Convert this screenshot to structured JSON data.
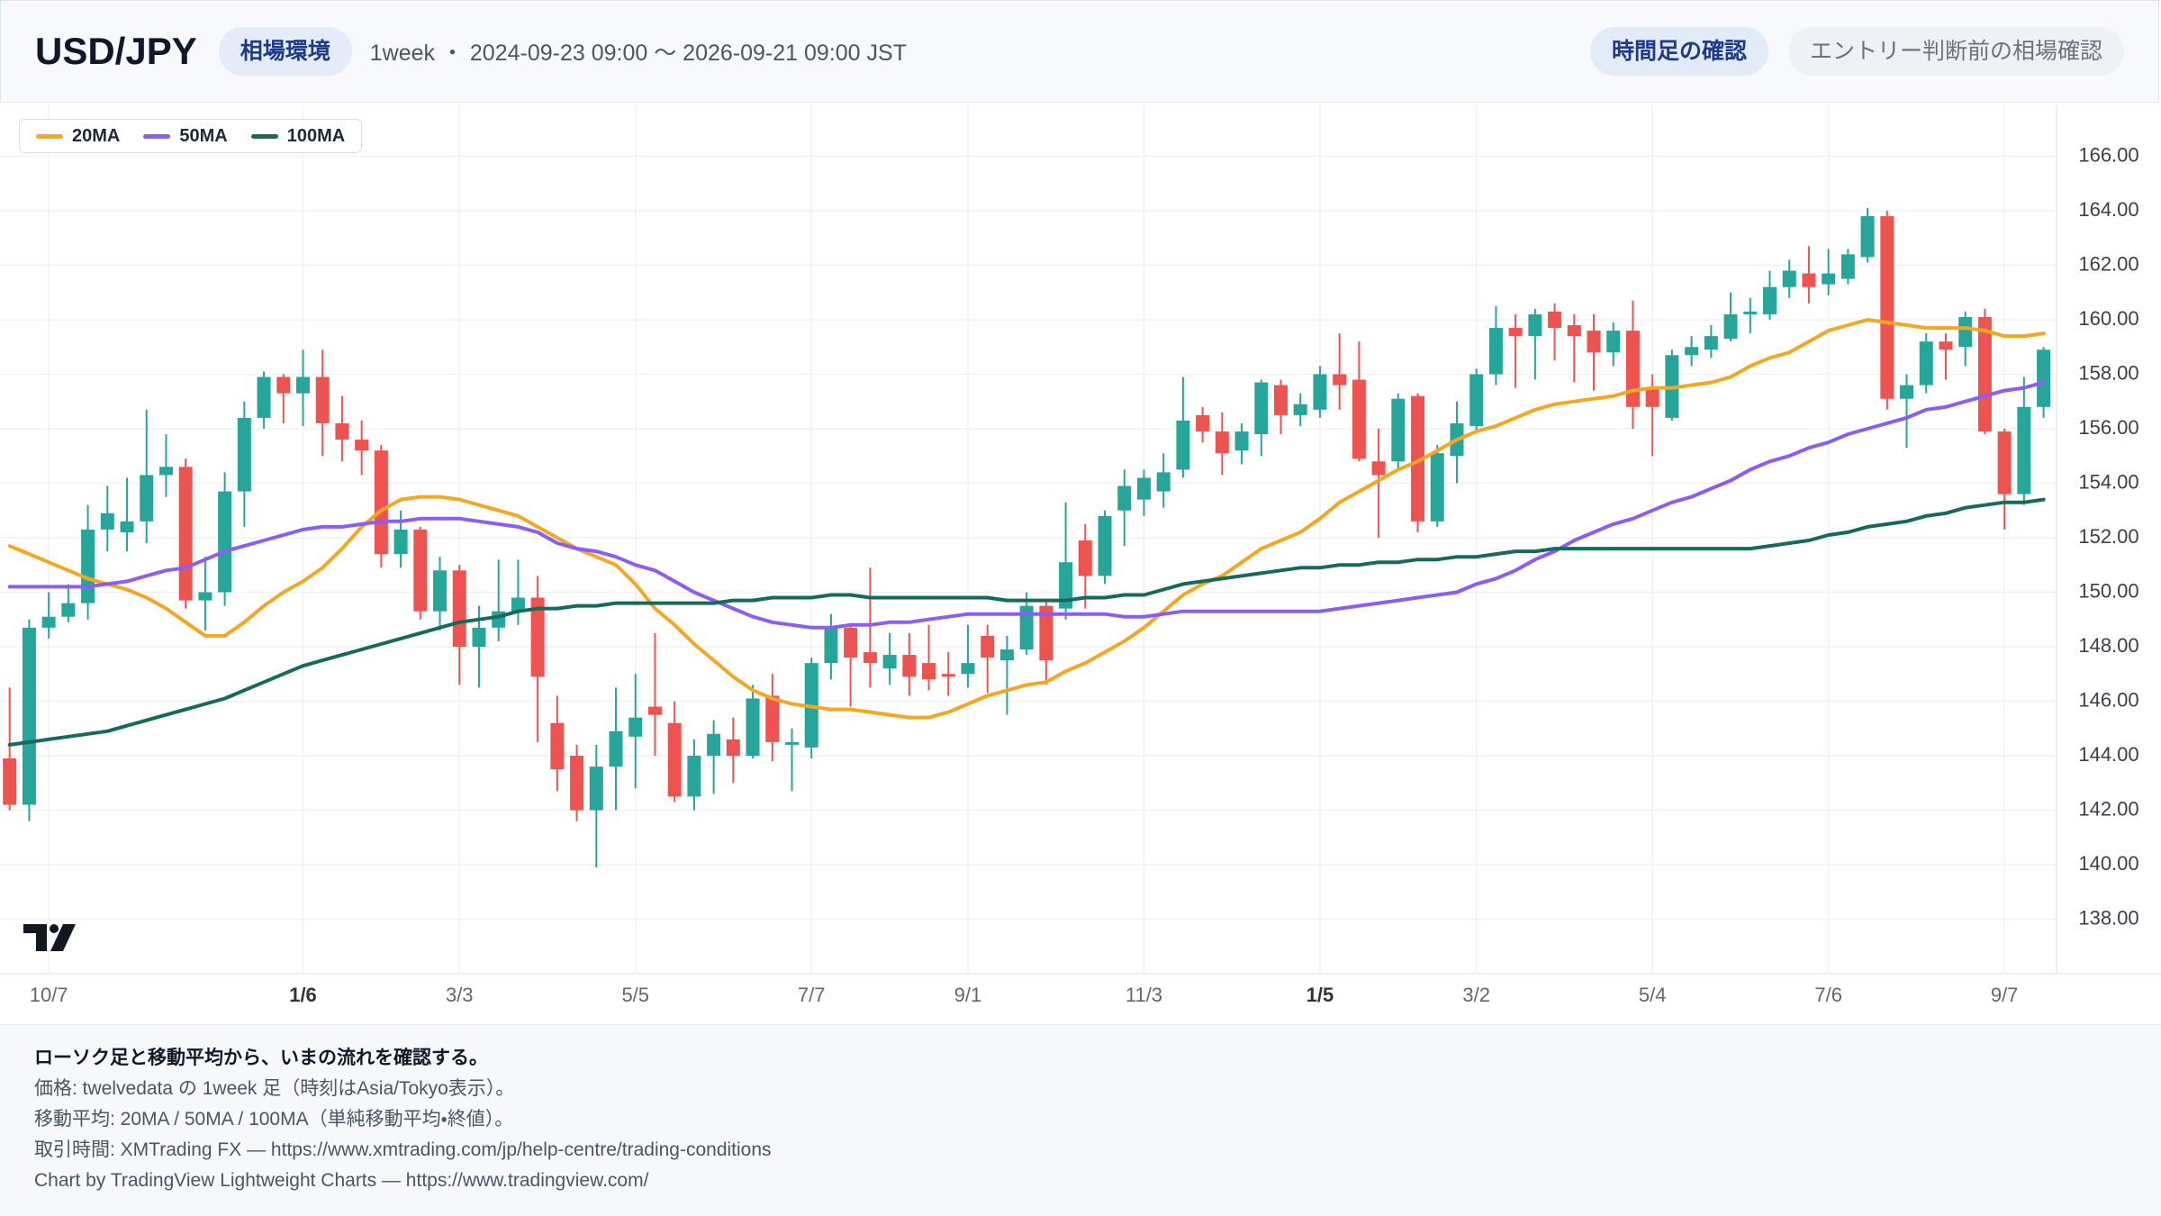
{
  "header": {
    "title": "USD/JPY",
    "badge": "相場環境",
    "subtitle": "1week ・ 2024-09-23 09:00 〜 2026-09-21 09:00 JST",
    "tabs": [
      "時間足の確認",
      "エントリー判断前の相場確認"
    ]
  },
  "chart_data": {
    "type": "candlestick",
    "categories": [
      null,
      null,
      "10/7",
      null,
      null,
      null,
      null,
      null,
      null,
      null,
      null,
      null,
      null,
      null,
      null,
      "1/6",
      null,
      null,
      null,
      null,
      null,
      null,
      null,
      "3/3",
      null,
      null,
      null,
      null,
      null,
      null,
      null,
      null,
      "5/5",
      null,
      null,
      null,
      null,
      null,
      null,
      null,
      null,
      "7/7",
      null,
      null,
      null,
      null,
      null,
      null,
      null,
      "9/1",
      null,
      null,
      null,
      null,
      null,
      null,
      null,
      null,
      "11/3",
      null,
      null,
      null,
      null,
      null,
      null,
      null,
      null,
      "1/5",
      null,
      null,
      null,
      null,
      null,
      null,
      null,
      "3/2",
      null,
      null,
      null,
      null,
      null,
      null,
      null,
      null,
      "5/4",
      null,
      null,
      null,
      null,
      null,
      null,
      null,
      null,
      "7/6",
      null,
      null,
      null,
      null,
      null,
      null,
      null,
      null,
      "9/7",
      null,
      null
    ],
    "open": [
      143.9,
      142.2,
      148.7,
      149.1,
      149.6,
      152.3,
      152.2,
      152.6,
      154.3,
      154.6,
      149.7,
      150.0,
      153.7,
      156.4,
      157.9,
      157.3,
      157.9,
      156.2,
      155.6,
      155.2,
      151.4,
      152.3,
      149.3,
      150.8,
      148.0,
      148.7,
      149.3,
      149.8,
      145.2,
      144.0,
      142.0,
      143.6,
      144.7,
      145.8,
      145.2,
      142.5,
      144.0,
      144.6,
      144.0,
      146.2,
      144.4,
      144.3,
      147.4,
      148.7,
      147.8,
      147.2,
      147.7,
      147.4,
      147.0,
      147.0,
      148.4,
      147.5,
      147.9,
      149.5,
      149.4,
      151.9,
      150.6,
      153.0,
      153.4,
      153.7,
      154.5,
      156.5,
      155.9,
      155.2,
      155.8,
      157.6,
      156.5,
      156.7,
      158.0,
      157.8,
      154.8,
      154.8,
      157.2,
      152.6,
      155.0,
      156.1,
      158.0,
      159.7,
      159.4,
      160.3,
      159.8,
      159.6,
      158.8,
      159.6,
      157.5,
      156.4,
      158.7,
      158.9,
      159.3,
      160.2,
      160.2,
      161.2,
      161.7,
      161.3,
      161.5,
      162.3,
      163.8,
      157.1,
      157.6,
      159.2,
      159.0,
      160.1,
      155.9,
      153.6,
      156.8
    ],
    "high": [
      146.5,
      149.0,
      150.0,
      150.3,
      153.2,
      153.9,
      154.2,
      156.7,
      155.8,
      154.9,
      151.3,
      154.4,
      157.0,
      158.1,
      158.0,
      158.9,
      158.9,
      157.2,
      156.3,
      155.4,
      153.0,
      152.4,
      151.3,
      151.0,
      149.5,
      151.2,
      151.2,
      150.6,
      146.2,
      144.4,
      144.4,
      146.5,
      147.0,
      148.5,
      146.0,
      144.6,
      145.3,
      145.4,
      146.6,
      147.0,
      145.0,
      147.6,
      149.2,
      148.8,
      150.9,
      148.5,
      148.5,
      148.8,
      147.8,
      148.8,
      148.8,
      148.4,
      150.0,
      149.7,
      153.3,
      152.5,
      153.0,
      154.5,
      154.5,
      155.1,
      157.9,
      156.8,
      156.6,
      156.2,
      157.8,
      157.8,
      157.3,
      158.3,
      159.5,
      159.2,
      156.0,
      157.3,
      157.3,
      155.4,
      157.0,
      158.2,
      160.5,
      160.2,
      160.4,
      160.6,
      160.2,
      160.2,
      159.9,
      160.7,
      158.0,
      158.9,
      159.4,
      159.8,
      161.0,
      160.8,
      161.8,
      162.2,
      162.7,
      162.6,
      162.6,
      164.1,
      164.0,
      158.0,
      159.5,
      159.5,
      160.3,
      160.4,
      156.0,
      157.9,
      159.0
    ],
    "low": [
      142.0,
      141.6,
      148.3,
      148.9,
      149.0,
      151.5,
      151.5,
      151.8,
      153.5,
      149.4,
      148.6,
      149.5,
      152.4,
      156.0,
      156.2,
      156.1,
      155.0,
      154.8,
      154.3,
      150.9,
      150.9,
      149.0,
      148.6,
      146.6,
      146.5,
      148.2,
      148.8,
      144.5,
      142.7,
      141.6,
      139.9,
      142.0,
      142.8,
      144.0,
      142.3,
      142.0,
      142.6,
      143.0,
      143.9,
      143.8,
      142.7,
      143.9,
      146.8,
      145.8,
      146.5,
      146.6,
      146.2,
      146.4,
      146.2,
      146.5,
      146.3,
      145.5,
      147.7,
      146.6,
      149.0,
      149.4,
      150.3,
      151.7,
      152.8,
      153.1,
      154.2,
      155.5,
      154.3,
      154.7,
      155.0,
      155.8,
      156.1,
      156.4,
      156.7,
      154.8,
      152.0,
      154.5,
      152.2,
      152.4,
      154.0,
      155.9,
      157.6,
      157.5,
      157.8,
      158.5,
      157.7,
      157.4,
      158.3,
      156.0,
      155.0,
      156.3,
      158.3,
      158.6,
      159.2,
      159.5,
      160.0,
      160.8,
      160.6,
      160.9,
      161.3,
      162.1,
      156.7,
      155.3,
      157.3,
      157.8,
      158.3,
      155.8,
      152.3,
      153.2,
      156.4
    ],
    "close": [
      142.2,
      148.7,
      149.1,
      149.6,
      152.3,
      152.9,
      152.6,
      154.3,
      154.6,
      149.7,
      150.0,
      153.7,
      156.4,
      157.9,
      157.3,
      157.9,
      156.2,
      155.6,
      155.2,
      151.4,
      152.3,
      149.3,
      150.8,
      148.0,
      148.7,
      149.3,
      149.8,
      146.9,
      143.5,
      142.0,
      143.6,
      144.9,
      145.4,
      145.5,
      142.5,
      144.0,
      144.8,
      144.0,
      146.1,
      144.5,
      144.5,
      147.4,
      148.7,
      147.6,
      147.4,
      147.7,
      146.9,
      146.8,
      146.9,
      147.4,
      147.6,
      147.9,
      149.5,
      147.5,
      151.1,
      150.6,
      152.8,
      153.9,
      154.2,
      154.4,
      156.3,
      155.9,
      155.1,
      155.9,
      157.7,
      156.5,
      156.9,
      158.0,
      157.6,
      154.9,
      154.3,
      157.1,
      152.6,
      155.1,
      156.2,
      158.0,
      159.7,
      159.4,
      160.2,
      159.7,
      159.4,
      158.8,
      159.6,
      156.8,
      156.8,
      158.7,
      159.0,
      159.4,
      160.2,
      160.3,
      161.2,
      161.8,
      161.2,
      161.7,
      162.4,
      163.8,
      157.1,
      157.6,
      159.2,
      158.9,
      160.1,
      155.9,
      153.6,
      156.8,
      158.9
    ],
    "up_color": "#26a69a",
    "down_color": "#ef5350",
    "series": [
      {
        "name": "20MA",
        "color": "#f5a623",
        "values": [
          151.7,
          151.4,
          151.1,
          150.8,
          150.5,
          150.3,
          150.1,
          149.8,
          149.4,
          148.9,
          148.4,
          148.4,
          148.9,
          149.5,
          150.0,
          150.4,
          150.9,
          151.6,
          152.4,
          153.0,
          153.4,
          153.5,
          153.5,
          153.4,
          153.2,
          153.0,
          152.8,
          152.4,
          152.0,
          151.6,
          151.3,
          151.0,
          150.3,
          149.4,
          148.8,
          148.1,
          147.5,
          146.9,
          146.4,
          146.1,
          145.9,
          145.8,
          145.7,
          145.7,
          145.6,
          145.5,
          145.4,
          145.4,
          145.6,
          145.9,
          146.2,
          146.4,
          146.6,
          146.7,
          147.1,
          147.4,
          147.8,
          148.2,
          148.7,
          149.3,
          149.9,
          150.3,
          150.6,
          151.1,
          151.6,
          151.9,
          152.2,
          152.7,
          153.3,
          153.7,
          154.1,
          154.5,
          154.8,
          155.2,
          155.6,
          155.9,
          156.1,
          156.4,
          156.7,
          156.9,
          157.0,
          157.1,
          157.2,
          157.4,
          157.5,
          157.5,
          157.6,
          157.7,
          157.9,
          158.3,
          158.6,
          158.8,
          159.2,
          159.6,
          159.8,
          160.0,
          159.9,
          159.8,
          159.7,
          159.7,
          159.7,
          159.6,
          159.4,
          159.4,
          159.5
        ]
      },
      {
        "name": "50MA",
        "color": "#8b5cf6",
        "values": [
          150.2,
          150.2,
          150.2,
          150.2,
          150.2,
          150.3,
          150.4,
          150.6,
          150.8,
          150.9,
          151.2,
          151.5,
          151.7,
          151.9,
          152.1,
          152.3,
          152.4,
          152.4,
          152.5,
          152.6,
          152.6,
          152.7,
          152.7,
          152.7,
          152.6,
          152.5,
          152.4,
          152.2,
          151.8,
          151.6,
          151.5,
          151.3,
          151.0,
          150.8,
          150.4,
          150.0,
          149.7,
          149.4,
          149.1,
          148.9,
          148.8,
          148.7,
          148.7,
          148.8,
          148.8,
          148.9,
          148.9,
          149.0,
          149.1,
          149.2,
          149.2,
          149.2,
          149.2,
          149.2,
          149.2,
          149.2,
          149.2,
          149.1,
          149.1,
          149.2,
          149.3,
          149.3,
          149.3,
          149.3,
          149.3,
          149.3,
          149.3,
          149.3,
          149.4,
          149.5,
          149.6,
          149.7,
          149.8,
          149.9,
          150.0,
          150.3,
          150.5,
          150.8,
          151.2,
          151.5,
          151.9,
          152.2,
          152.5,
          152.7,
          153.0,
          153.3,
          153.5,
          153.8,
          154.1,
          154.5,
          154.8,
          155.0,
          155.3,
          155.5,
          155.8,
          156.0,
          156.2,
          156.4,
          156.7,
          156.8,
          157.0,
          157.2,
          157.4,
          157.5,
          157.7
        ]
      },
      {
        "name": "100MA",
        "color": "#17695a",
        "values": [
          144.4,
          144.5,
          144.6,
          144.7,
          144.8,
          144.9,
          145.1,
          145.3,
          145.5,
          145.7,
          145.9,
          146.1,
          146.4,
          146.7,
          147.0,
          147.3,
          147.5,
          147.7,
          147.9,
          148.1,
          148.3,
          148.5,
          148.7,
          148.9,
          149.0,
          149.1,
          149.3,
          149.4,
          149.4,
          149.5,
          149.5,
          149.6,
          149.6,
          149.6,
          149.6,
          149.6,
          149.6,
          149.7,
          149.7,
          149.8,
          149.8,
          149.8,
          149.9,
          149.9,
          149.8,
          149.8,
          149.8,
          149.8,
          149.8,
          149.8,
          149.8,
          149.7,
          149.7,
          149.7,
          149.7,
          149.8,
          149.8,
          149.9,
          149.9,
          150.1,
          150.3,
          150.4,
          150.5,
          150.6,
          150.7,
          150.8,
          150.9,
          150.9,
          151.0,
          151.0,
          151.1,
          151.1,
          151.2,
          151.2,
          151.3,
          151.3,
          151.4,
          151.5,
          151.5,
          151.6,
          151.6,
          151.6,
          151.6,
          151.6,
          151.6,
          151.6,
          151.6,
          151.6,
          151.6,
          151.6,
          151.7,
          151.8,
          151.9,
          152.1,
          152.2,
          152.4,
          152.5,
          152.6,
          152.8,
          152.9,
          153.1,
          153.2,
          153.3,
          153.3,
          153.4
        ]
      }
    ],
    "ylim": [
      136.0,
      167.9
    ],
    "yticks": [
      {
        "value": 138,
        "label": "138.00"
      },
      {
        "value": 140,
        "label": "140.00"
      },
      {
        "value": 142,
        "label": "142.00"
      },
      {
        "value": 144,
        "label": "144.00"
      },
      {
        "value": 146,
        "label": "146.00"
      },
      {
        "value": 148,
        "label": "148.00"
      },
      {
        "value": 150,
        "label": "150.00"
      },
      {
        "value": 152,
        "label": "152.00"
      },
      {
        "value": 154,
        "label": "154.00"
      },
      {
        "value": 156,
        "label": "156.00"
      },
      {
        "value": 158,
        "label": "158.00"
      },
      {
        "value": 160,
        "label": "160.00"
      },
      {
        "value": 162,
        "label": "162.00"
      },
      {
        "value": 164,
        "label": "164.00"
      },
      {
        "value": 166,
        "label": "166.00"
      }
    ],
    "grid": true,
    "legend": "top-left"
  },
  "footer": {
    "lines": [
      "ローソク足と移動平均から、いまの流れを確認する。",
      "価格: twelvedata の 1week 足（時刻はAsia/Tokyo表示）。",
      "移動平均: 20MA / 50MA / 100MA（単純移動平均・終値）。",
      "取引時間: XMTrading FX — https://www.xmtrading.com/jp/help-centre/trading-conditions",
      "Chart by TradingView Lightweight Charts — https://www.tradingview.com/"
    ]
  }
}
